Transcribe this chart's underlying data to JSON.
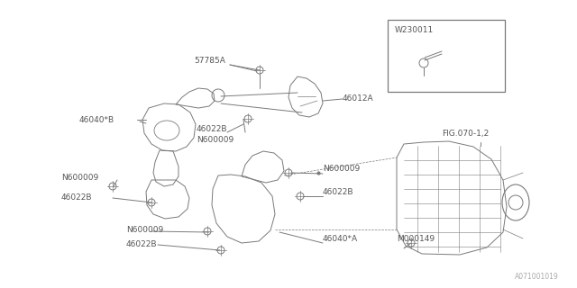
{
  "bg_color": "#ffffff",
  "line_color": "#7a7a7a",
  "text_color": "#555555",
  "border_color": "#7a7a7a",
  "fig_width": 6.4,
  "fig_height": 3.2,
  "dpi": 100,
  "bottom_right_label": "A071001019",
  "inset_label": "W230011",
  "fig_ref": "FIG.070-1,2",
  "lw": 0.7
}
